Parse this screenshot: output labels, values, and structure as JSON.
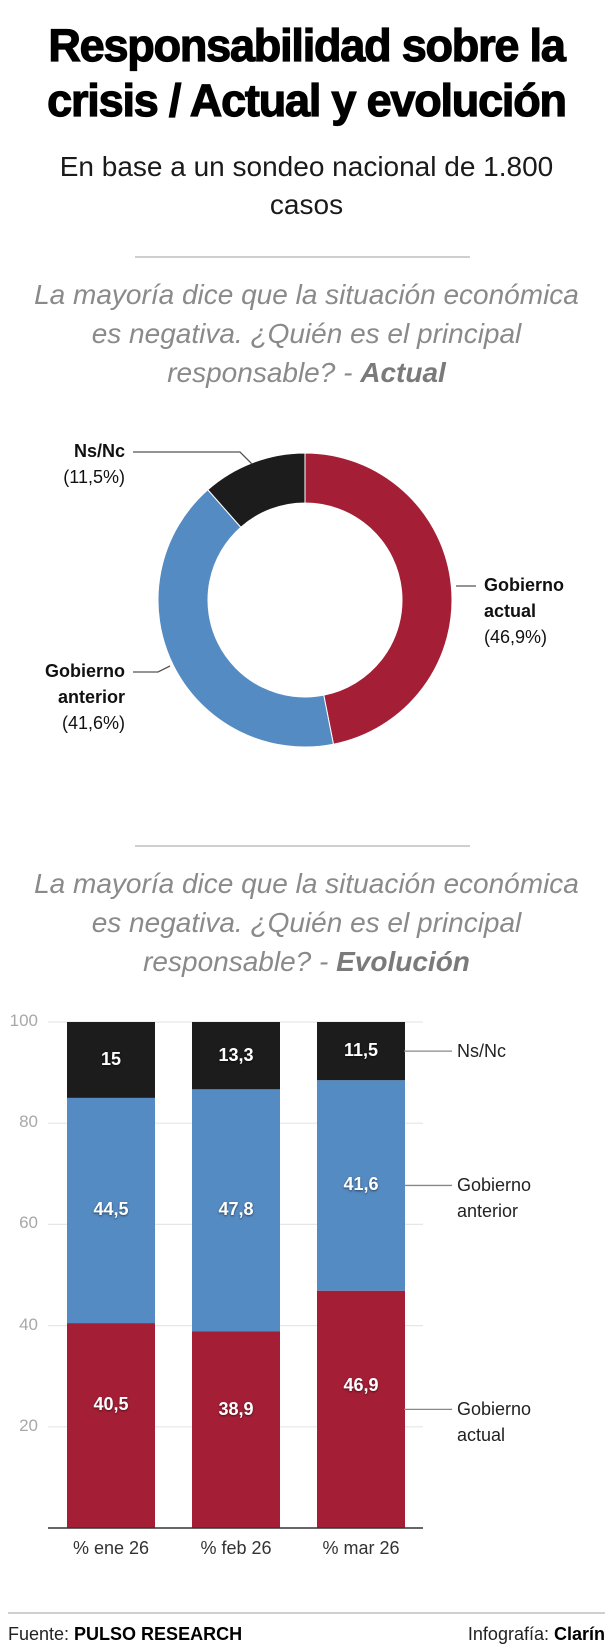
{
  "header": {
    "title_line1": "Responsabilidad sobre la",
    "title_line2": "crisis / Actual y evolución",
    "subtitle_line1": "En base a un sondeo nacional de 1.800",
    "subtitle_line2": "casos"
  },
  "question1": {
    "line1": "La mayoría dice que la situación económica",
    "line2": "es negativa. ¿Quién es el principal",
    "line3": "responsable? - ",
    "emphasis": "Actual"
  },
  "question2": {
    "line1": "La mayoría dice que la situación económica",
    "line2": "es negativa. ¿Quién es el principal",
    "line3": "responsable? - ",
    "emphasis": "Evolución"
  },
  "colors": {
    "gobierno_actual": "#a41f36",
    "gobierno_anterior": "#558bc3",
    "ns_nc": "#1c1c1c",
    "grid": "#e6e6e6",
    "axis": "#333333"
  },
  "chart_data": [
    {
      "type": "pie",
      "variant": "donut",
      "title": "La mayoría dice que la situación económica es negativa. ¿Quién es el principal responsable? - Actual",
      "slices": [
        {
          "name": "Gobierno actual",
          "label_line1": "Gobierno",
          "label_line2": "actual",
          "value": 46.9,
          "value_text": "(46,9%)"
        },
        {
          "name": "Gobierno anterior",
          "label_line1": "Gobierno",
          "label_line2": "anterior",
          "value": 41.6,
          "value_text": "(41,6%)"
        },
        {
          "name": "Ns/Nc",
          "label_line1": "Ns/Nc",
          "value": 11.5,
          "value_text": "(11,5%)"
        }
      ],
      "start": "top, clockwise"
    },
    {
      "type": "bar",
      "stacked": true,
      "title": "La mayoría dice que la situación económica es negativa. ¿Quién es el principal responsable? - Evolución",
      "categories": [
        "% ene 26",
        "% feb 26",
        "% mar 26"
      ],
      "series": [
        {
          "name": "Gobierno actual",
          "legend_line1": "Gobierno",
          "legend_line2": "actual",
          "values": [
            40.5,
            38.9,
            46.9
          ],
          "labels": [
            "40,5",
            "38,9",
            "46,9"
          ]
        },
        {
          "name": "Gobierno anterior",
          "legend_line1": "Gobierno",
          "legend_line2": "anterior",
          "values": [
            44.5,
            47.8,
            41.6
          ],
          "labels": [
            "44,5",
            "47,8",
            "41,6"
          ]
        },
        {
          "name": "Ns/Nc",
          "legend_line1": "Ns/Nc",
          "values": [
            15,
            13.3,
            11.5
          ],
          "labels": [
            "15",
            "13,3",
            "11,5"
          ]
        }
      ],
      "yticks": [
        "20",
        "40",
        "60",
        "80",
        "100"
      ],
      "ylim": [
        0,
        100
      ],
      "grid": true,
      "legend": "right",
      "xlabel": "",
      "ylabel": ""
    }
  ],
  "footer": {
    "source_label": "Fuente: ",
    "source_name": "PULSO RESEARCH",
    "credit_label": "Infografía: ",
    "credit_name": "Clarín"
  }
}
